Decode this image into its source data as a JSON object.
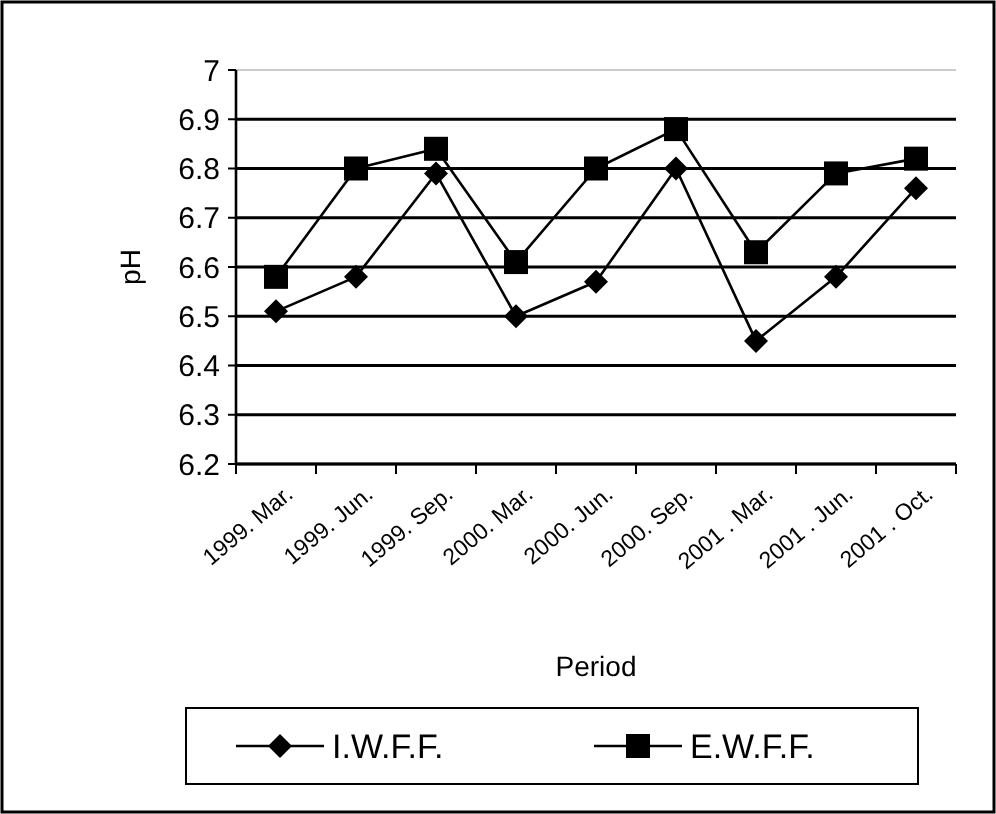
{
  "chart_data": {
    "type": "line",
    "xlabel": "Period",
    "ylabel": "pH",
    "categories": [
      "1999. Mar.",
      "1999. Jun.",
      "1999. Sep.",
      "2000. Mar.",
      "2000. Jun.",
      "2000. Sep.",
      "2001 . Mar.",
      "2001 . Jun.",
      "2001 . Oct."
    ],
    "series": [
      {
        "name": "I.W.F.F.",
        "color": "#000000",
        "marker": "diamond",
        "values": [
          6.51,
          6.58,
          6.79,
          6.5,
          6.57,
          6.8,
          6.45,
          6.58,
          6.76
        ]
      },
      {
        "name": "E.W.F.F.",
        "color": "#000000",
        "marker": "square",
        "values": [
          6.58,
          6.8,
          6.84,
          6.61,
          6.8,
          6.88,
          6.63,
          6.79,
          6.82
        ]
      }
    ],
    "ylim": [
      6.2,
      7
    ],
    "yticks": [
      6.2,
      6.3,
      6.4,
      6.5,
      6.6,
      6.7,
      6.8,
      6.9,
      7
    ],
    "grid": "y",
    "legend": "bottom",
    "line_style": "solid"
  }
}
